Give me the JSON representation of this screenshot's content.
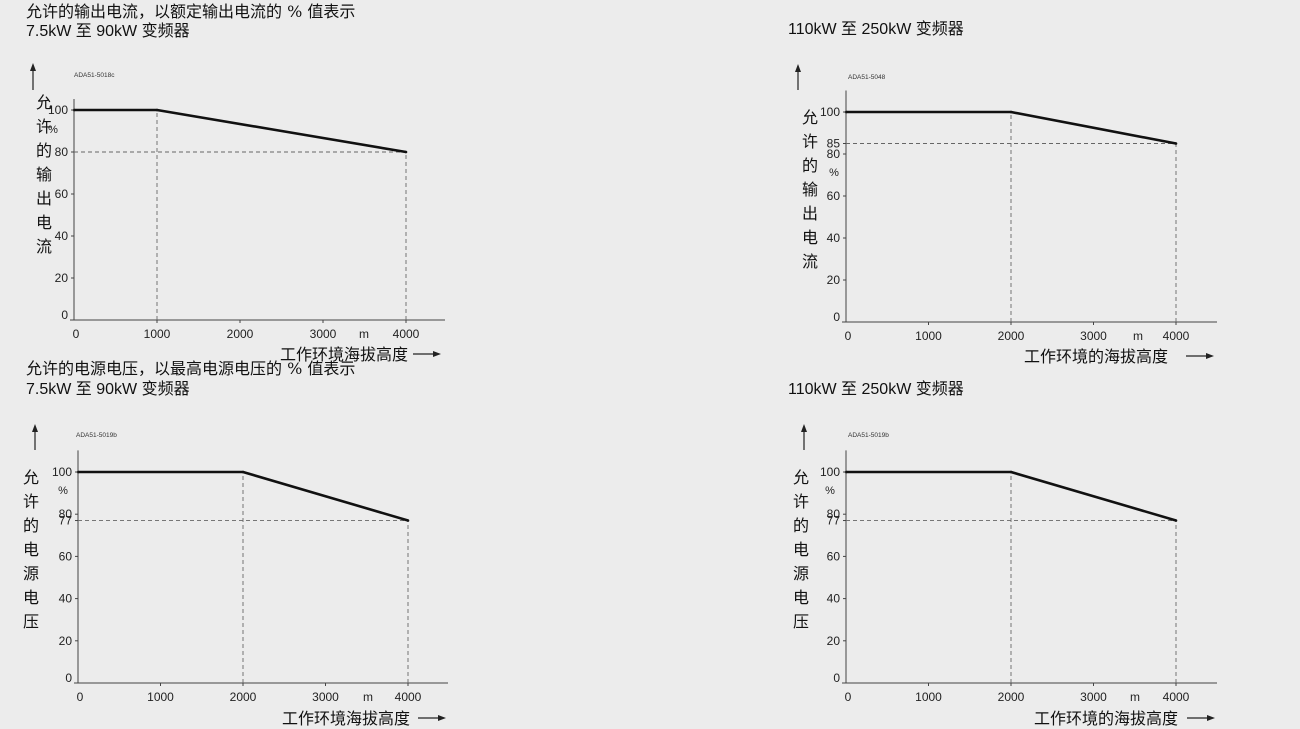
{
  "section_titles": {
    "current": "允许的输出电流，以额定输出电流的 % 值表示",
    "voltage": "允许的电源电压，以最高电源电压的 % 值表示"
  },
  "chart_data": [
    {
      "type": "line",
      "subtitle": "7.5kW 至 90kW 变频器",
      "code": "ADA51-5018c",
      "ylabel": "允许的输出电流",
      "yunit": "%",
      "xlabel": "工作环境海拔高度",
      "xunit": "m",
      "xlim": [
        0,
        4400
      ],
      "ylim": [
        0,
        110
      ],
      "xticks": [
        0,
        1000,
        2000,
        3000,
        4000
      ],
      "yticks": [
        0,
        20,
        40,
        60,
        80,
        100
      ],
      "x": [
        0,
        1000,
        4000
      ],
      "y": [
        100,
        100,
        80
      ],
      "ref_lines": [
        {
          "axis": "x",
          "value": 1000,
          "from": 0,
          "to": 100
        },
        {
          "axis": "x",
          "value": 4000,
          "from": 0,
          "to": 80
        },
        {
          "axis": "y",
          "value": 80,
          "from": 0,
          "to": 4000
        }
      ]
    },
    {
      "type": "line",
      "subtitle": "110kW 至 250kW 变频器",
      "code": "ADA51-5048",
      "ylabel": "允许的输出电流",
      "yunit": "%",
      "xlabel": "工作环境的海拔高度",
      "xunit": "m",
      "xlim": [
        0,
        4400
      ],
      "ylim": [
        0,
        115
      ],
      "xticks": [
        0,
        1000,
        2000,
        3000,
        4000
      ],
      "yticks": [
        0,
        20,
        40,
        60,
        80,
        85,
        100
      ],
      "x": [
        0,
        2000,
        4000
      ],
      "y": [
        100,
        100,
        85
      ],
      "ref_lines": [
        {
          "axis": "x",
          "value": 2000,
          "from": 0,
          "to": 100
        },
        {
          "axis": "x",
          "value": 4000,
          "from": 0,
          "to": 85
        },
        {
          "axis": "y",
          "value": 85,
          "from": 0,
          "to": 4000
        }
      ]
    },
    {
      "type": "line",
      "subtitle": "7.5kW 至 90kW 变频器",
      "code": "ADA51-5019b",
      "ylabel": "允许的电源电压",
      "yunit": "%",
      "xlabel": "工作环境海拔高度",
      "xunit": "m",
      "xlim": [
        0,
        4400
      ],
      "ylim": [
        0,
        115
      ],
      "xticks": [
        0,
        1000,
        2000,
        3000,
        4000
      ],
      "yticks": [
        0,
        20,
        40,
        60,
        77,
        80,
        100
      ],
      "x": [
        0,
        2000,
        4000
      ],
      "y": [
        100,
        100,
        77
      ],
      "ref_lines": [
        {
          "axis": "x",
          "value": 2000,
          "from": 0,
          "to": 100
        },
        {
          "axis": "x",
          "value": 4000,
          "from": 0,
          "to": 77
        },
        {
          "axis": "y",
          "value": 77,
          "from": 0,
          "to": 4000
        }
      ]
    },
    {
      "type": "line",
      "subtitle": "110kW 至 250kW 变频器",
      "code": "ADA51-5019b",
      "ylabel": "允许的电源电压",
      "yunit": "%",
      "xlabel": "工作环境的海拔高度",
      "xunit": "m",
      "xlim": [
        0,
        4400
      ],
      "ylim": [
        0,
        115
      ],
      "xticks": [
        0,
        1000,
        2000,
        3000,
        4000
      ],
      "yticks": [
        0,
        20,
        40,
        60,
        77,
        80,
        100
      ],
      "x": [
        0,
        2000,
        4000
      ],
      "y": [
        100,
        100,
        77
      ],
      "ref_lines": [
        {
          "axis": "x",
          "value": 2000,
          "from": 0,
          "to": 100
        },
        {
          "axis": "x",
          "value": 4000,
          "from": 0,
          "to": 77
        },
        {
          "axis": "y",
          "value": 77,
          "from": 0,
          "to": 4000
        }
      ]
    }
  ]
}
